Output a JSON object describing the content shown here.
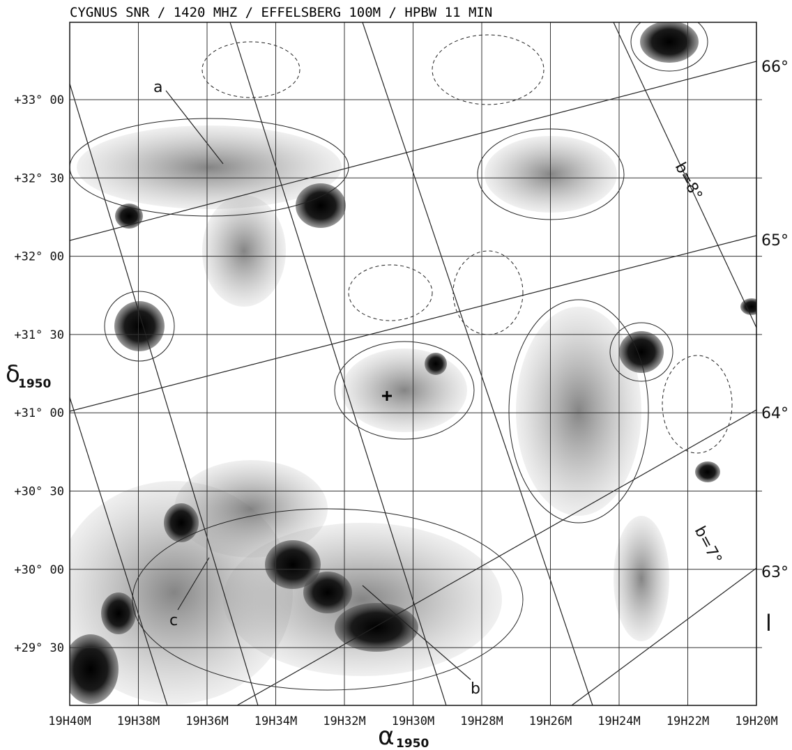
{
  "title": "CYGNUS SNR / 1420 MHZ / EFFELSBERG 100M / HPBW 11 MIN",
  "x_axis": {
    "symbol": "α",
    "subscript": "1950",
    "ticks": [
      "19H40M",
      "19H38M",
      "19H36M",
      "19H34M",
      "19H32M",
      "19H30M",
      "19H28M",
      "19H26M",
      "19H24M",
      "19H22M",
      "19H20M"
    ]
  },
  "y_axis": {
    "symbol": "δ",
    "subscript": "1950",
    "ticks": [
      "+33° 00",
      "+32° 30",
      "+32° 00",
      "+31° 30",
      "+31° 00",
      "+30° 30",
      "+30° 00",
      "+29° 30"
    ]
  },
  "galactic_latitude_labels": [
    "66°",
    "65°",
    "64°",
    "63°"
  ],
  "galactic_longitude_labels": [
    "b=8°",
    "b=7°"
  ],
  "galactic_axis_label": "l",
  "markers": [
    "a",
    "b",
    "c"
  ]
}
